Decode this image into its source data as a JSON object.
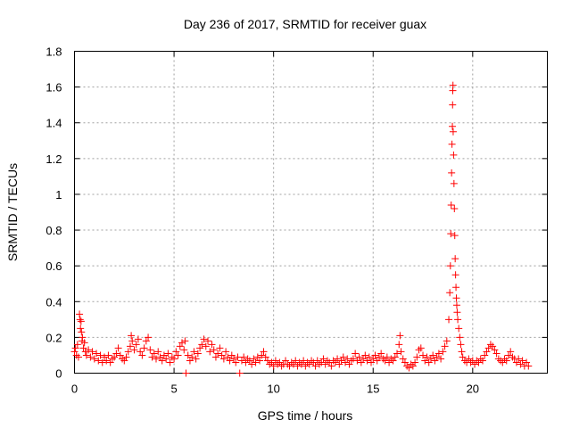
{
  "chart_data": {
    "type": "scatter",
    "title": "Day 236 of 2017, SRMTID for receiver guax",
    "xlabel": "GPS time / hours",
    "ylabel": "SRMTID / TECUs",
    "xlim": [
      0,
      23.75
    ],
    "ylim": [
      0,
      1.8
    ],
    "grid": true,
    "marker": "+",
    "series_color": "#ff0000",
    "x_ticks": [
      {
        "value": 0,
        "label": "0"
      },
      {
        "value": 5,
        "label": "5"
      },
      {
        "value": 10,
        "label": "10"
      },
      {
        "value": 15,
        "label": "15"
      },
      {
        "value": 20,
        "label": "20"
      }
    ],
    "y_ticks": [
      {
        "value": 0,
        "label": "0"
      },
      {
        "value": 0.2,
        "label": "0.2"
      },
      {
        "value": 0.4,
        "label": "0.4"
      },
      {
        "value": 0.6,
        "label": "0.6"
      },
      {
        "value": 0.8,
        "label": "0.8"
      },
      {
        "value": 1.0,
        "label": "1"
      },
      {
        "value": 1.2,
        "label": "1.2"
      },
      {
        "value": 1.4,
        "label": "1.4"
      },
      {
        "value": 1.6,
        "label": "1.6"
      },
      {
        "value": 1.8,
        "label": "1.8"
      }
    ],
    "series": [
      {
        "name": "SRMTID",
        "points": [
          [
            0.0,
            0.12
          ],
          [
            0.05,
            0.14
          ],
          [
            0.1,
            0.1
          ],
          [
            0.15,
            0.16
          ],
          [
            0.2,
            0.09
          ],
          [
            0.25,
            0.33
          ],
          [
            0.28,
            0.3
          ],
          [
            0.3,
            0.25
          ],
          [
            0.33,
            0.29
          ],
          [
            0.35,
            0.23
          ],
          [
            0.38,
            0.18
          ],
          [
            0.4,
            0.2
          ],
          [
            0.45,
            0.14
          ],
          [
            0.5,
            0.17
          ],
          [
            0.55,
            0.12
          ],
          [
            0.6,
            0.1
          ],
          [
            0.7,
            0.13
          ],
          [
            0.8,
            0.09
          ],
          [
            0.9,
            0.12
          ],
          [
            1.0,
            0.08
          ],
          [
            1.1,
            0.11
          ],
          [
            1.2,
            0.07
          ],
          [
            1.3,
            0.1
          ],
          [
            1.4,
            0.06
          ],
          [
            1.5,
            0.09
          ],
          [
            1.6,
            0.07
          ],
          [
            1.7,
            0.1
          ],
          [
            1.8,
            0.06
          ],
          [
            1.9,
            0.08
          ],
          [
            2.0,
            0.09
          ],
          [
            2.1,
            0.11
          ],
          [
            2.2,
            0.14
          ],
          [
            2.3,
            0.1
          ],
          [
            2.4,
            0.08
          ],
          [
            2.5,
            0.07
          ],
          [
            2.6,
            0.09
          ],
          [
            2.7,
            0.12
          ],
          [
            2.8,
            0.15
          ],
          [
            2.85,
            0.21
          ],
          [
            2.9,
            0.18
          ],
          [
            3.0,
            0.13
          ],
          [
            3.1,
            0.16
          ],
          [
            3.2,
            0.19
          ],
          [
            3.3,
            0.12
          ],
          [
            3.4,
            0.1
          ],
          [
            3.5,
            0.14
          ],
          [
            3.6,
            0.18
          ],
          [
            3.7,
            0.2
          ],
          [
            3.8,
            0.13
          ],
          [
            3.9,
            0.09
          ],
          [
            4.0,
            0.11
          ],
          [
            4.1,
            0.08
          ],
          [
            4.2,
            0.12
          ],
          [
            4.3,
            0.09
          ],
          [
            4.4,
            0.07
          ],
          [
            4.5,
            0.1
          ],
          [
            4.6,
            0.08
          ],
          [
            4.7,
            0.11
          ],
          [
            4.8,
            0.06
          ],
          [
            4.9,
            0.09
          ],
          [
            5.0,
            0.08
          ],
          [
            5.1,
            0.12
          ],
          [
            5.2,
            0.1
          ],
          [
            5.3,
            0.15
          ],
          [
            5.4,
            0.17
          ],
          [
            5.5,
            0.13
          ],
          [
            5.55,
            0.18
          ],
          [
            5.6,
            0.0
          ],
          [
            5.7,
            0.1
          ],
          [
            5.8,
            0.07
          ],
          [
            5.9,
            0.09
          ],
          [
            6.0,
            0.12
          ],
          [
            6.1,
            0.08
          ],
          [
            6.2,
            0.11
          ],
          [
            6.3,
            0.14
          ],
          [
            6.4,
            0.16
          ],
          [
            6.5,
            0.19
          ],
          [
            6.6,
            0.15
          ],
          [
            6.7,
            0.18
          ],
          [
            6.8,
            0.12
          ],
          [
            6.9,
            0.16
          ],
          [
            7.0,
            0.13
          ],
          [
            7.1,
            0.09
          ],
          [
            7.2,
            0.11
          ],
          [
            7.3,
            0.14
          ],
          [
            7.4,
            0.1
          ],
          [
            7.5,
            0.08
          ],
          [
            7.6,
            0.12
          ],
          [
            7.7,
            0.09
          ],
          [
            7.8,
            0.07
          ],
          [
            7.9,
            0.1
          ],
          [
            8.0,
            0.08
          ],
          [
            8.1,
            0.06
          ],
          [
            8.2,
            0.09
          ],
          [
            8.3,
            0.0
          ],
          [
            8.4,
            0.07
          ],
          [
            8.5,
            0.09
          ],
          [
            8.6,
            0.06
          ],
          [
            8.7,
            0.08
          ],
          [
            8.8,
            0.07
          ],
          [
            8.9,
            0.05
          ],
          [
            9.0,
            0.08
          ],
          [
            9.1,
            0.06
          ],
          [
            9.2,
            0.09
          ],
          [
            9.3,
            0.07
          ],
          [
            9.4,
            0.1
          ],
          [
            9.5,
            0.12
          ],
          [
            9.6,
            0.09
          ],
          [
            9.7,
            0.07
          ],
          [
            9.8,
            0.05
          ],
          [
            9.9,
            0.06
          ],
          [
            10.0,
            0.04
          ],
          [
            10.1,
            0.07
          ],
          [
            10.2,
            0.05
          ],
          [
            10.3,
            0.06
          ],
          [
            10.4,
            0.04
          ],
          [
            10.5,
            0.05
          ],
          [
            10.6,
            0.07
          ],
          [
            10.7,
            0.05
          ],
          [
            10.8,
            0.04
          ],
          [
            10.9,
            0.06
          ],
          [
            11.0,
            0.05
          ],
          [
            11.1,
            0.07
          ],
          [
            11.2,
            0.04
          ],
          [
            11.3,
            0.06
          ],
          [
            11.4,
            0.05
          ],
          [
            11.5,
            0.07
          ],
          [
            11.6,
            0.04
          ],
          [
            11.7,
            0.06
          ],
          [
            11.8,
            0.05
          ],
          [
            11.9,
            0.07
          ],
          [
            12.0,
            0.06
          ],
          [
            12.1,
            0.04
          ],
          [
            12.2,
            0.07
          ],
          [
            12.3,
            0.05
          ],
          [
            12.4,
            0.06
          ],
          [
            12.5,
            0.08
          ],
          [
            12.6,
            0.05
          ],
          [
            12.7,
            0.07
          ],
          [
            12.8,
            0.06
          ],
          [
            12.9,
            0.04
          ],
          [
            13.0,
            0.07
          ],
          [
            13.1,
            0.06
          ],
          [
            13.2,
            0.08
          ],
          [
            13.3,
            0.05
          ],
          [
            13.4,
            0.07
          ],
          [
            13.5,
            0.09
          ],
          [
            13.6,
            0.06
          ],
          [
            13.7,
            0.08
          ],
          [
            13.8,
            0.05
          ],
          [
            13.9,
            0.07
          ],
          [
            14.0,
            0.08
          ],
          [
            14.1,
            0.11
          ],
          [
            14.2,
            0.07
          ],
          [
            14.3,
            0.09
          ],
          [
            14.4,
            0.06
          ],
          [
            14.5,
            0.08
          ],
          [
            14.6,
            0.1
          ],
          [
            14.7,
            0.07
          ],
          [
            14.8,
            0.09
          ],
          [
            14.9,
            0.06
          ],
          [
            15.0,
            0.08
          ],
          [
            15.1,
            0.1
          ],
          [
            15.2,
            0.07
          ],
          [
            15.3,
            0.09
          ],
          [
            15.4,
            0.11
          ],
          [
            15.5,
            0.08
          ],
          [
            15.6,
            0.07
          ],
          [
            15.7,
            0.09
          ],
          [
            15.8,
            0.06
          ],
          [
            15.9,
            0.08
          ],
          [
            16.0,
            0.07
          ],
          [
            16.1,
            0.09
          ],
          [
            16.2,
            0.11
          ],
          [
            16.3,
            0.16
          ],
          [
            16.35,
            0.21
          ],
          [
            16.4,
            0.12
          ],
          [
            16.5,
            0.08
          ],
          [
            16.6,
            0.06
          ],
          [
            16.7,
            0.04
          ],
          [
            16.8,
            0.03
          ],
          [
            16.9,
            0.05
          ],
          [
            17.0,
            0.04
          ],
          [
            17.1,
            0.06
          ],
          [
            17.2,
            0.09
          ],
          [
            17.3,
            0.13
          ],
          [
            17.4,
            0.14
          ],
          [
            17.5,
            0.1
          ],
          [
            17.6,
            0.07
          ],
          [
            17.7,
            0.09
          ],
          [
            17.8,
            0.06
          ],
          [
            17.9,
            0.08
          ],
          [
            18.0,
            0.1
          ],
          [
            18.1,
            0.07
          ],
          [
            18.2,
            0.09
          ],
          [
            18.3,
            0.11
          ],
          [
            18.4,
            0.08
          ],
          [
            18.5,
            0.12
          ],
          [
            18.6,
            0.15
          ],
          [
            18.7,
            0.18
          ],
          [
            18.8,
            0.3
          ],
          [
            18.85,
            0.45
          ],
          [
            18.88,
            0.6
          ],
          [
            18.9,
            0.78
          ],
          [
            18.92,
            0.94
          ],
          [
            18.94,
            1.12
          ],
          [
            18.96,
            1.28
          ],
          [
            18.98,
            1.38
          ],
          [
            18.99,
            1.5
          ],
          [
            19.0,
            1.58
          ],
          [
            19.01,
            1.61
          ],
          [
            19.02,
            1.35
          ],
          [
            19.04,
            1.22
          ],
          [
            19.06,
            1.06
          ],
          [
            19.08,
            0.92
          ],
          [
            19.1,
            0.77
          ],
          [
            19.12,
            0.64
          ],
          [
            19.14,
            0.55
          ],
          [
            19.16,
            0.48
          ],
          [
            19.18,
            0.42
          ],
          [
            19.2,
            0.38
          ],
          [
            19.22,
            0.34
          ],
          [
            19.25,
            0.3
          ],
          [
            19.3,
            0.25
          ],
          [
            19.35,
            0.2
          ],
          [
            19.4,
            0.16
          ],
          [
            19.45,
            0.12
          ],
          [
            19.5,
            0.09
          ],
          [
            19.6,
            0.07
          ],
          [
            19.7,
            0.06
          ],
          [
            19.8,
            0.08
          ],
          [
            19.9,
            0.06
          ],
          [
            20.0,
            0.07
          ],
          [
            20.1,
            0.05
          ],
          [
            20.2,
            0.07
          ],
          [
            20.3,
            0.06
          ],
          [
            20.4,
            0.08
          ],
          [
            20.5,
            0.07
          ],
          [
            20.6,
            0.1
          ],
          [
            20.7,
            0.12
          ],
          [
            20.8,
            0.14
          ],
          [
            20.9,
            0.16
          ],
          [
            21.0,
            0.15
          ],
          [
            21.1,
            0.13
          ],
          [
            21.2,
            0.11
          ],
          [
            21.3,
            0.08
          ],
          [
            21.4,
            0.07
          ],
          [
            21.5,
            0.06
          ],
          [
            21.6,
            0.08
          ],
          [
            21.7,
            0.07
          ],
          [
            21.8,
            0.1
          ],
          [
            21.9,
            0.12
          ],
          [
            22.0,
            0.09
          ],
          [
            22.1,
            0.08
          ],
          [
            22.2,
            0.06
          ],
          [
            22.3,
            0.08
          ],
          [
            22.4,
            0.05
          ],
          [
            22.5,
            0.07
          ],
          [
            22.6,
            0.04
          ],
          [
            22.7,
            0.06
          ],
          [
            22.8,
            0.04
          ]
        ]
      }
    ]
  }
}
